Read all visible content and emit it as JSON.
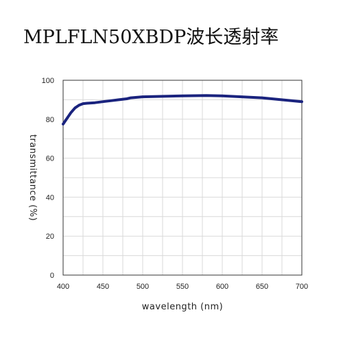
{
  "page": {
    "title": "MPLFLN50XBDP波长透射率"
  },
  "colors": {
    "line": "#1a237e",
    "grid": "#d9d9d9",
    "axis": "#333333",
    "background": "#ffffff"
  },
  "chart_data": {
    "type": "line",
    "title": "MPLFLN50XBDP波长透射率",
    "xlabel": "wavelength (nm)",
    "ylabel": "transmittance (%)",
    "xlim": [
      400,
      700
    ],
    "ylim": [
      0,
      100
    ],
    "x_ticks": [
      400,
      450,
      500,
      550,
      600,
      650,
      700
    ],
    "y_ticks": [
      0,
      20,
      40,
      60,
      80,
      100
    ],
    "grid": true,
    "series": [
      {
        "x": [
          400,
          405,
          410,
          415,
          420,
          425,
          430,
          440,
          450,
          460,
          470,
          480,
          485,
          500,
          550,
          580,
          600,
          650,
          700
        ],
        "values": [
          77.5,
          80.5,
          83.5,
          85.8,
          87.2,
          88.0,
          88.2,
          88.5,
          89.0,
          89.5,
          90.0,
          90.5,
          91.0,
          91.5,
          92.0,
          92.2,
          92.0,
          91.0,
          89.0
        ]
      }
    ]
  }
}
